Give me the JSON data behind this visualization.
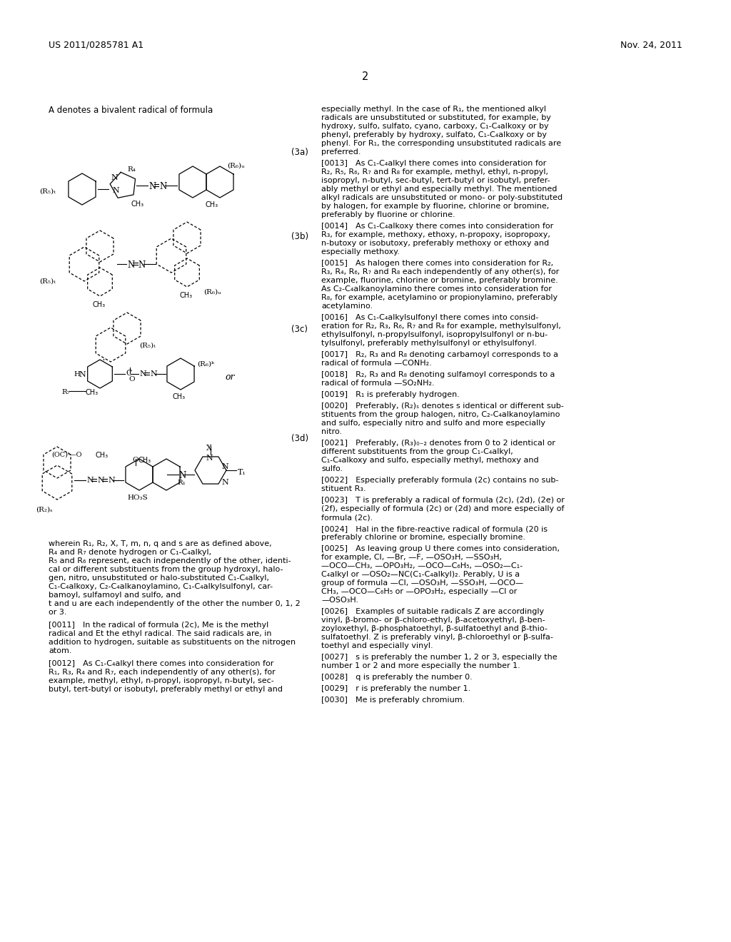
{
  "page_width": 10.24,
  "page_height": 13.2,
  "bg_color": "#ffffff",
  "header_left": "US 2011/0285781 A1",
  "header_right": "Nov. 24, 2011",
  "page_number": "2",
  "left_col_intro": "A denotes a bivalent radical of formula",
  "formula_label_3a": "(3a)",
  "formula_label_3b": "(3b)",
  "formula_label_3c": "(3c)",
  "formula_label_3d": "(3d)",
  "formula_or": "or",
  "bottom_text_lines": [
    "wherein R₁, R₂, X, T, m, n, q and s are as defined above,",
    "R₄ and R₇ denote hydrogen or C₁-C₄alkyl,",
    "R₅ and R₆ represent, each independently of the other, identi-",
    "cal or different substituents from the group hydroxyl, halo-",
    "gen, nitro, unsubstituted or halo-substituted C₁-C₄alkyl,",
    "C₁-C₄alkoxy, C₂-C₄alkanoylamino, C₁-C₄alkylsulfonyl, car-",
    "bamoyl, sulfamoyl and sulfo, and",
    "t and u are each independently of the other the number 0, 1, 2",
    "or 3."
  ],
  "para_0011_lines": [
    "[0011] In the radical of formula (2c), Me is the methyl",
    "radical and Et the ethyl radical. The said radicals are, in",
    "addition to hydrogen, suitable as substituents on the nitrogen",
    "atom."
  ],
  "para_0012_lines": [
    "[0012] As C₁-C₄alkyl there comes into consideration for",
    "R₁, R₃, R₄ and R₇, each independently of any other(s), for",
    "example, methyl, ethyl, n-propyl, isopropyl, n-butyl, sec-",
    "butyl, tert-butyl or isobutyl, preferably methyl or ethyl and"
  ],
  "right_para_cont_lines": [
    "especially methyl. In the case of R₁, the mentioned alkyl",
    "radicals are unsubstituted or substituted, for example, by",
    "hydroxy, sulfo, sulfato, cyano, carboxy, C₁-C₄alkoxy or by",
    "phenyl, preferably by hydroxy, sulfato, C₁-C₄alkoxy or by",
    "phenyl. For R₁, the corresponding unsubstituted radicals are",
    "preferred."
  ],
  "para_0013_lines": [
    "[0013] As C₁-C₄alkyl there comes into consideration for",
    "R₂, R₅, R₆, R₇ and R₈ for example, methyl, ethyl, n-propyl,",
    "isopropyl, n-butyl, sec-butyl, tert-butyl or isobutyl, prefer-",
    "ably methyl or ethyl and especially methyl. The mentioned",
    "alkyl radicals are unsubstituted or mono- or poly-substituted",
    "by halogen, for example by fluorine, chlorine or bromine,",
    "preferably by fluorine or chlorine."
  ],
  "para_0014_lines": [
    "[0014] As C₁-C₄alkoxy there comes into consideration for",
    "R₃, for example, methoxy, ethoxy, n-propoxy, isopropoxy,",
    "n-butoxy or isobutoxy, preferably methoxy or ethoxy and",
    "especially methoxy."
  ],
  "para_0015_lines": [
    "[0015] As halogen there comes into consideration for R₂,",
    "R₃, R₄, R₆, R₇ and R₈ each independently of any other(s), for",
    "example, fluorine, chlorine or bromine, preferably bromine.",
    "As C₂-C₄alkanoylamino there comes into consideration for",
    "R₈, for example, acetylamino or propionylamino, preferably",
    "acetylamino."
  ],
  "para_0016_lines": [
    "[0016] As C₁-C₄alkylsulfonyl there comes into consid-",
    "eration for R₂, R₃, R₆, R₇ and R₈ for example, methylsulfonyl,",
    "ethylsulfonyl, n-propylsulfonyl, isopropylsulfonyl or n-bu-",
    "tylsulfonyl, preferably methylsulfonyl or ethylsulfonyl."
  ],
  "para_0017_lines": [
    "[0017] R₂, R₃ and R₈ denoting carbamoyl corresponds to a",
    "radical of formula —CONH₂."
  ],
  "para_0018_lines": [
    "[0018] R₂, R₃ and R₈ denoting sulfamoyl corresponds to a",
    "radical of formula —SO₂NH₂."
  ],
  "para_0019_lines": [
    "[0019] R₁ is preferably hydrogen."
  ],
  "para_0020_lines": [
    "[0020] Preferably, (R₂)ₛ denotes s identical or different sub-",
    "stituents from the group halogen, nitro, C₂-C₄alkanoylamino",
    "and sulfo, especially nitro and sulfo and more especially",
    "nitro."
  ],
  "para_0021_lines": [
    "[0021] Preferably, (R₃)₀₋₂ denotes from 0 to 2 identical or",
    "different substituents from the group C₁-C₄alkyl,",
    "C₁-C₄alkoxy and sulfo, especially methyl, methoxy and",
    "sulfo."
  ],
  "para_0022_lines": [
    "[0022] Especially preferably formula (2c) contains no sub-",
    "stituent R₃."
  ],
  "para_0023_lines": [
    "[0023] T is preferably a radical of formula (2c), (2d), (2e) or",
    "(2f), especially of formula (2c) or (2d) and more especially of",
    "formula (2c)."
  ],
  "para_0024_lines": [
    "[0024] Hal in the fibre-reactive radical of formula (20 is",
    "preferably chlorine or bromine, especially bromine."
  ],
  "para_0025_lines": [
    "[0025] As leaving group U there comes into consideration,",
    "for example, Cl, —Br, —F, —OSO₃H, —SSO₃H,",
    "—OCO—CH₃, —OPO₃H₂, —OCO—C₆H₅, —OSO₂—C₁-",
    "C₄alkyl or —OSO₂—NC(C₁-C₄alkyl)₂. Perably, U is a",
    "group of formula —Cl, —OSO₃H, —SSO₃H, —OCO—",
    "CH₃, —OCO—C₆H₅ or —OPO₃H₂, especially —Cl or",
    "—OSO₃H."
  ],
  "para_0026_lines": [
    "[0026] Examples of suitable radicals Z are accordingly",
    "vinyl, β-bromo- or β-chloro-ethyl, β-acetoxyethyl, β-ben-",
    "zoyloxethyl, β-phosphatoethyl, β-sulfatoethyl and β-thio-",
    "sulfatoethyl. Z is preferably vinyl, β-chloroethyl or β-sulfa-",
    "toethyl and especially vinyl."
  ],
  "para_0027_lines": [
    "[0027] s is preferably the number 1, 2 or 3, especially the",
    "number 1 or 2 and more especially the number 1."
  ],
  "para_0028_lines": [
    "[0028] q is preferably the number 0."
  ],
  "para_0029_lines": [
    "[0029] r is preferably the number 1."
  ],
  "para_0030_lines": [
    "[0030] Me is preferably chromium."
  ]
}
